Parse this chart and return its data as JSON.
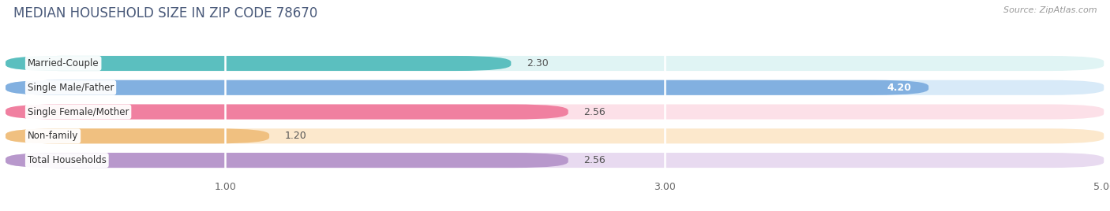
{
  "title": "MEDIAN HOUSEHOLD SIZE IN ZIP CODE 78670",
  "source": "Source: ZipAtlas.com",
  "categories": [
    "Married-Couple",
    "Single Male/Father",
    "Single Female/Mother",
    "Non-family",
    "Total Households"
  ],
  "values": [
    2.3,
    4.2,
    2.56,
    1.2,
    2.56
  ],
  "bar_colors": [
    "#5bbfbf",
    "#82b0e0",
    "#f080a0",
    "#f0c080",
    "#b898cc"
  ],
  "bar_bg_colors": [
    "#e0f4f4",
    "#d8eaf8",
    "#fce0e8",
    "#fce8cc",
    "#e8daf0"
  ],
  "value_inside": [
    false,
    true,
    false,
    false,
    false
  ],
  "xlim": [
    0,
    5.0
  ],
  "xticks": [
    1.0,
    3.0,
    5.0
  ],
  "value_fontsize": 9,
  "label_fontsize": 8.5,
  "title_fontsize": 12,
  "title_color": "#4a5a7a",
  "source_color": "#999999",
  "bg_color": "#ffffff",
  "bar_height": 0.62,
  "bar_gap": 0.38
}
